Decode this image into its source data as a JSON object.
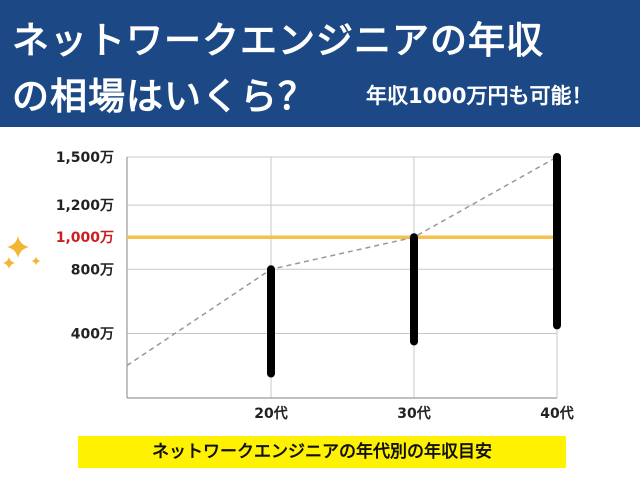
{
  "header": {
    "title_line1": "ネットワークエンジニアの年収",
    "title_line2": "の相場はいくら？",
    "subtitle": "年収1000万円も可能！"
  },
  "colors": {
    "banner": "#1c4985",
    "bar": "#000000",
    "reference_line": "#f5c04e",
    "reference_label": "#c8201e",
    "trend_line": "#999999",
    "caption_bg": "#fff200",
    "sparkle": "#f2b632"
  },
  "chart_data": {
    "type": "bar",
    "style": "floating range bars with reference line and dashed trend line",
    "categories": [
      "20代",
      "30代",
      "40代"
    ],
    "ranges": [
      {
        "category": "20代",
        "low": 150,
        "high": 800
      },
      {
        "category": "30代",
        "low": 350,
        "high": 1000
      },
      {
        "category": "40代",
        "low": 450,
        "high": 1500
      }
    ],
    "trend_line": {
      "x": [
        "",
        "20代",
        "30代",
        "40代"
      ],
      "y": [
        200,
        800,
        1000,
        1500
      ]
    },
    "reference_line": {
      "value": 1000,
      "label": "1,000万"
    },
    "y_ticks": [
      {
        "value": 400,
        "label": "400万"
      },
      {
        "value": 800,
        "label": "800万"
      },
      {
        "value": 1200,
        "label": "1,200万"
      },
      {
        "value": 1500,
        "label": "1,500万"
      }
    ],
    "grid": true,
    "caption": "ネットワークエンジニアの年代別の年収目安"
  }
}
